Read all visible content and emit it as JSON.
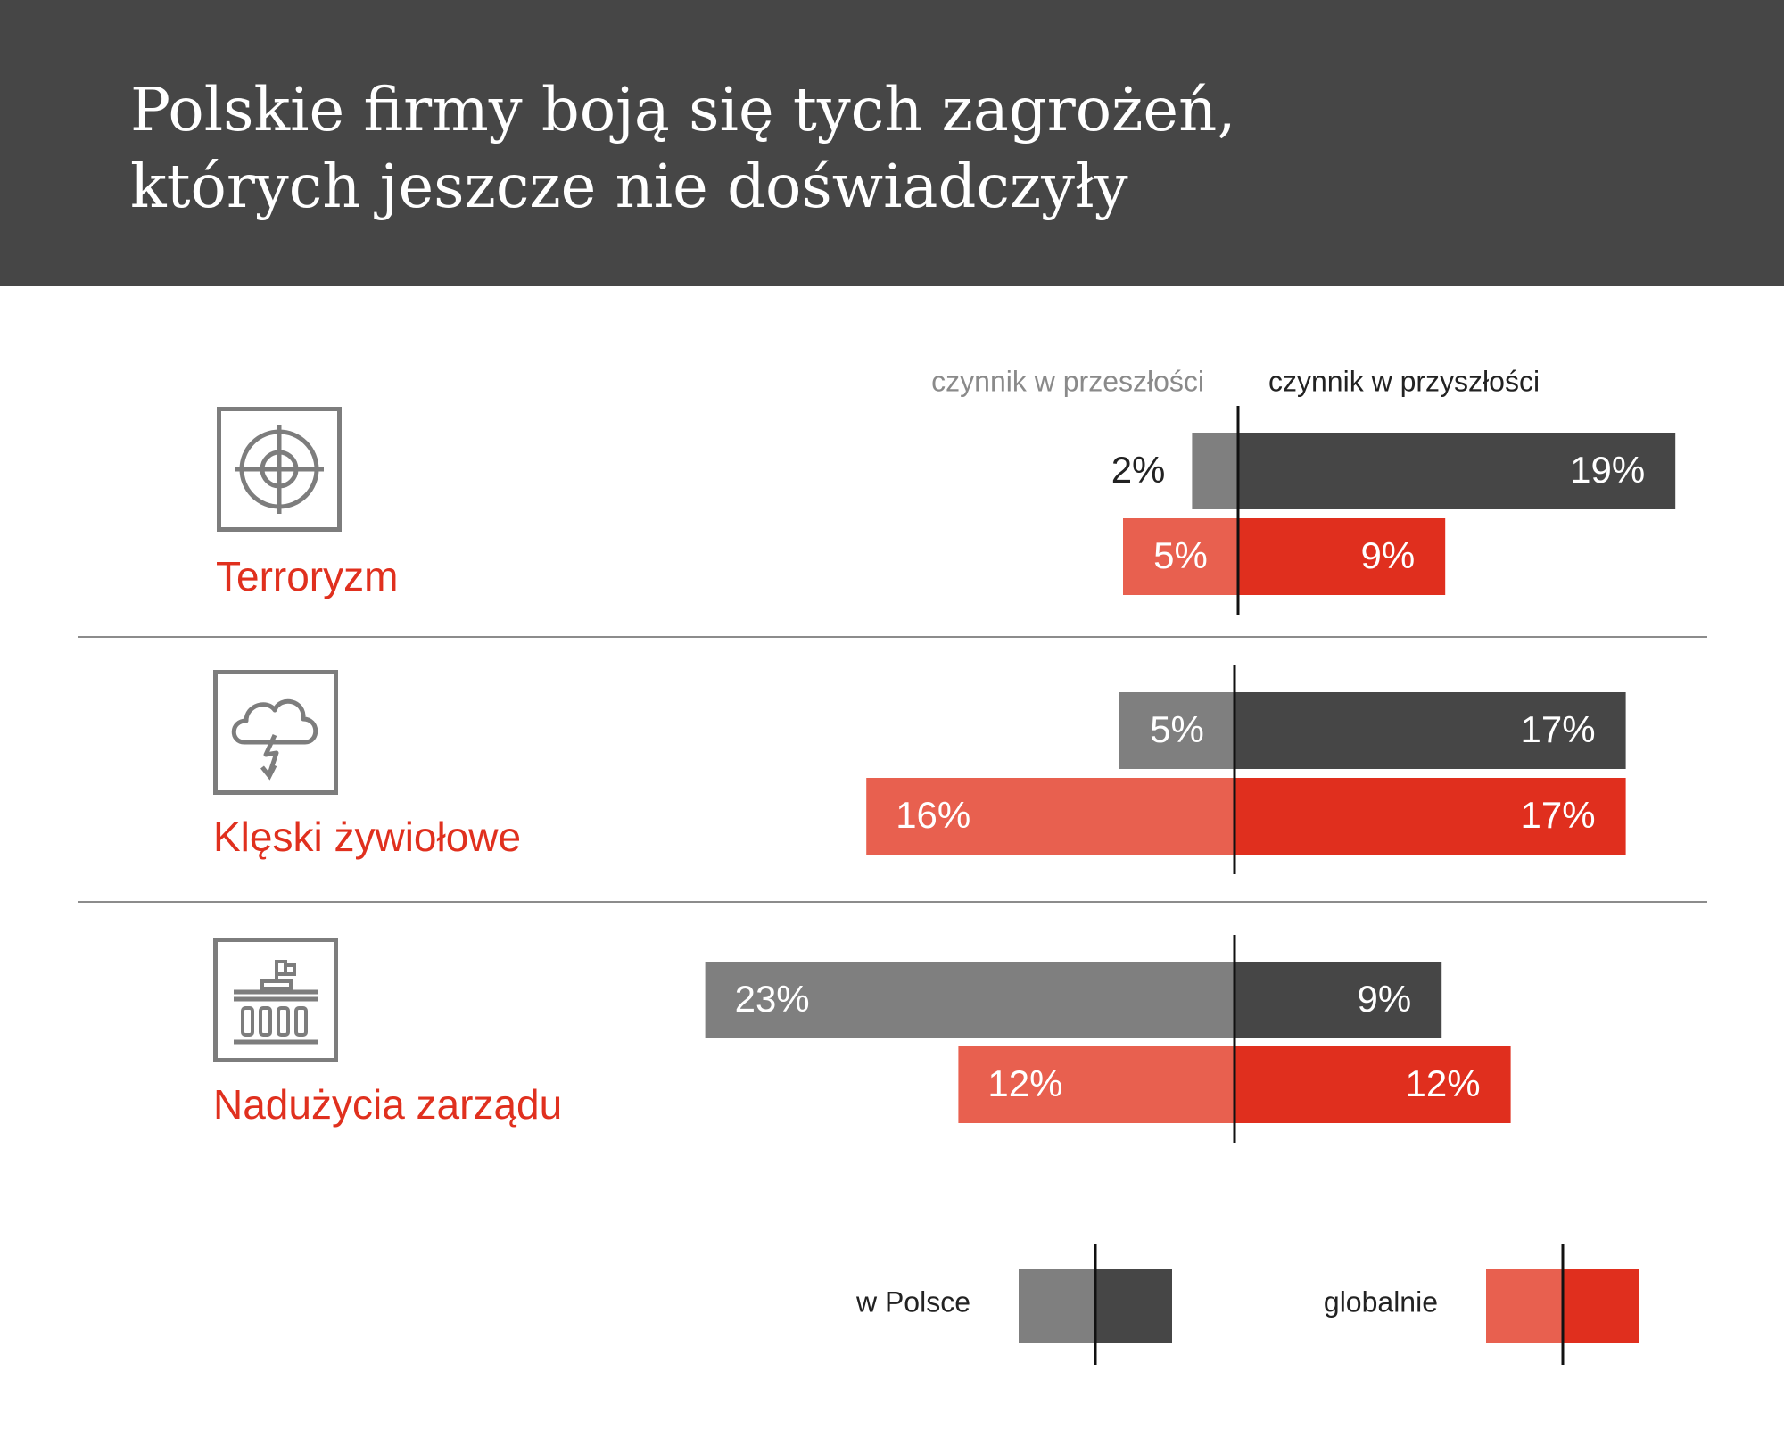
{
  "header": {
    "title_line1": "Polskie firmy boją się tych zagrożeń,",
    "title_line2": "których jeszcze nie doświadczyły"
  },
  "chart_data": {
    "type": "bar",
    "orientation": "horizontal-diverging",
    "column_headers": {
      "left": "czynnik w przeszłości",
      "right": "czynnik w przyszłości"
    },
    "categories": [
      "Terroryzm",
      "Klęski żywiołowe",
      "Nadużycia zarządu"
    ],
    "category_icons": [
      "target-icon",
      "storm-cloud-icon",
      "government-building-icon"
    ],
    "series": [
      {
        "name": "w Polsce",
        "past": [
          2,
          5,
          23
        ],
        "future": [
          19,
          17,
          9
        ],
        "color_past": "#7f7f7f",
        "color_future": "#464646"
      },
      {
        "name": "globalnie",
        "past": [
          5,
          16,
          12
        ],
        "future": [
          9,
          17,
          12
        ],
        "color_past": "#e8604f",
        "color_future": "#e02f1e"
      }
    ],
    "value_suffix": "%",
    "accent_color": "#e0301e",
    "legend": {
      "placement": "bottom-right",
      "items": [
        "w Polsce",
        "globalnie"
      ]
    }
  }
}
